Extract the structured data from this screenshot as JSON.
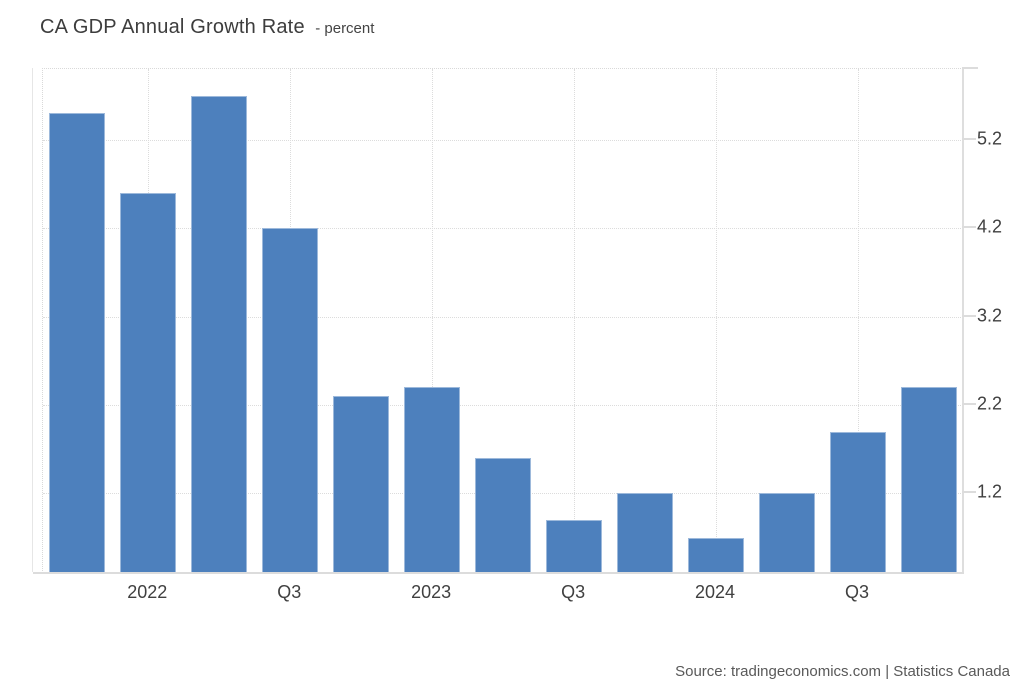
{
  "title": {
    "main": "CA GDP Annual Growth Rate",
    "suffix": "- percent"
  },
  "source": "Source: tradingeconomics.com | Statistics Canada",
  "colors": {
    "bar": "#4d80bd",
    "bar_border": "rgba(255,255,255,0.45)",
    "gridline": "#dcdcdc",
    "axis_line": "#dedede",
    "tick_text": "#404040",
    "title_text": "#3d3d3d",
    "source_text": "#595959",
    "background": "#ffffff"
  },
  "chart_data": {
    "type": "bar",
    "title": "CA GDP Annual Growth Rate",
    "subtitle_units": "percent",
    "values": [
      5.5,
      4.6,
      5.7,
      4.2,
      2.3,
      2.4,
      1.6,
      0.9,
      1.2,
      0.7,
      1.2,
      1.9,
      2.4
    ],
    "categories": [
      "",
      "2022",
      "",
      "Q3",
      "",
      "2023",
      "",
      "Q3",
      "",
      "2024",
      "",
      "Q3",
      ""
    ],
    "x_tick_labels": [
      "2022",
      "Q3",
      "2023",
      "Q3",
      "2024",
      "Q3"
    ],
    "y_ticks": [
      5.2,
      4.2,
      3.2,
      2.2,
      1.2
    ],
    "ylim": [
      0.3,
      6.0
    ],
    "xlabel": "",
    "ylabel": "",
    "y_axis_side": "right",
    "grid": "dotted",
    "legend": "none",
    "bar_color": "#4d80bd"
  }
}
